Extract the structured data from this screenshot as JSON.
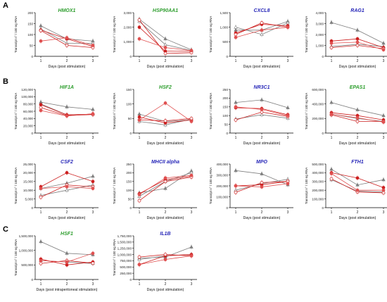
{
  "panel_letters": [
    "A",
    "B",
    "C"
  ],
  "colors": {
    "green_title": "#2e9e2e",
    "blue_title": "#2626b8",
    "gray": "#7f7f7f",
    "red": "#cc1f1f",
    "red_light": "#e05050"
  },
  "chart_data": [
    {
      "type": "line",
      "title": "HMOX1",
      "title_color": "green",
      "xlabel": "Days (post stimulation)",
      "ylabel": "Transcript n° / 100 ng RNA",
      "x": [
        1,
        2,
        3
      ],
      "ylim": [
        0,
        200
      ],
      "yticks": [
        0,
        50,
        100,
        150,
        200
      ],
      "yticklabels": [
        "0",
        "50",
        "100",
        "150",
        "200"
      ],
      "series": [
        {
          "values": [
            140,
            80,
            70
          ],
          "color": "gray",
          "marker": "triangle-filled"
        },
        {
          "values": [
            125,
            60,
            60
          ],
          "color": "gray",
          "marker": "triangle-open"
        },
        {
          "values": [
            120,
            80,
            45
          ],
          "color": "red",
          "marker": "circle-filled"
        },
        {
          "values": [
            118,
            50,
            40
          ],
          "color": "red",
          "marker": "circle-open"
        },
        {
          "values": [
            70,
            85,
            50
          ],
          "color": "red_light",
          "marker": "circle-filled"
        }
      ]
    },
    {
      "type": "line",
      "title": "HSP90AA1",
      "title_color": "green",
      "xlabel": "Days (post stimulation)",
      "ylabel": "Transcript n° / 100 ng RNA",
      "x": [
        1,
        2,
        3
      ],
      "ylim": [
        0,
        3000
      ],
      "yticks": [
        0,
        1000,
        2000,
        3000
      ],
      "yticklabels": [
        "0",
        "1,000",
        "2,000",
        "3,000"
      ],
      "series": [
        {
          "values": [
            2550,
            1200,
            450
          ],
          "color": "gray",
          "marker": "triangle-filled"
        },
        {
          "values": [
            2400,
            800,
            400
          ],
          "color": "gray",
          "marker": "triangle-open"
        },
        {
          "values": [
            2000,
            350,
            350
          ],
          "color": "red",
          "marker": "circle-filled"
        },
        {
          "values": [
            2500,
            200,
            250
          ],
          "color": "red",
          "marker": "circle-open"
        },
        {
          "values": [
            1200,
            600,
            400
          ],
          "color": "red_light",
          "marker": "circle-filled"
        }
      ]
    },
    {
      "type": "line",
      "title": "CXCL8",
      "title_color": "blue",
      "xlabel": "Days (post stimulation)",
      "ylabel": "Transcript n° / 100 ng RNA",
      "x": [
        1,
        2,
        3
      ],
      "ylim": [
        0,
        1500
      ],
      "yticks": [
        0,
        500,
        1000,
        1500
      ],
      "yticklabels": [
        "0",
        "500",
        "1,000",
        "1,500"
      ],
      "series": [
        {
          "values": [
            900,
            900,
            1200
          ],
          "color": "gray",
          "marker": "triangle-filled"
        },
        {
          "values": [
            1000,
            750,
            1150
          ],
          "color": "gray",
          "marker": "triangle-open"
        },
        {
          "values": [
            800,
            1100,
            1050
          ],
          "color": "red",
          "marker": "circle-filled"
        },
        {
          "values": [
            750,
            1150,
            1000
          ],
          "color": "red",
          "marker": "circle-open"
        },
        {
          "values": [
            650,
            900,
            1000
          ],
          "color": "red_light",
          "marker": "circle-filled"
        }
      ]
    },
    {
      "type": "line",
      "title": "RAG1",
      "title_color": "blue",
      "xlabel": "Days (post stimulation)",
      "ylabel": "Transcript n° / 100 ng RNA",
      "x": [
        1,
        2,
        3
      ],
      "ylim": [
        0,
        4000
      ],
      "yticks": [
        0,
        1000,
        2000,
        3000,
        4000
      ],
      "yticklabels": [
        "0",
        "1,000",
        "2,000",
        "3,000",
        "4,000"
      ],
      "series": [
        {
          "values": [
            3100,
            2400,
            1200
          ],
          "color": "gray",
          "marker": "triangle-filled"
        },
        {
          "values": [
            900,
            1100,
            900
          ],
          "color": "gray",
          "marker": "triangle-open"
        },
        {
          "values": [
            1400,
            1600,
            800
          ],
          "color": "red",
          "marker": "circle-filled"
        },
        {
          "values": [
            800,
            1000,
            700
          ],
          "color": "red",
          "marker": "circle-open"
        },
        {
          "values": [
            1200,
            1300,
            600
          ],
          "color": "red_light",
          "marker": "circle-filled"
        }
      ]
    },
    {
      "type": "line",
      "title": "HIF1A",
      "title_color": "green",
      "xlabel": "Days (post stimulation)",
      "ylabel": "Transcript n° / 100 ng RNA",
      "x": [
        1,
        2,
        3
      ],
      "ylim": [
        0,
        120000
      ],
      "yticks": [
        0,
        20000,
        40000,
        60000,
        80000,
        100000,
        120000
      ],
      "yticklabels": [
        "0",
        "20,000",
        "40,000",
        "60,000",
        "80,000",
        "100,000",
        "120,000"
      ],
      "series": [
        {
          "values": [
            85000,
            72000,
            65000
          ],
          "color": "gray",
          "marker": "triangle-filled"
        },
        {
          "values": [
            80000,
            50000,
            52000
          ],
          "color": "gray",
          "marker": "triangle-open"
        },
        {
          "values": [
            78000,
            50000,
            52000
          ],
          "color": "red",
          "marker": "circle-filled"
        },
        {
          "values": [
            70000,
            48000,
            51000
          ],
          "color": "red",
          "marker": "circle-open"
        },
        {
          "values": [
            62000,
            47000,
            53000
          ],
          "color": "red_light",
          "marker": "circle-filled"
        }
      ]
    },
    {
      "type": "line",
      "title": "HSF2",
      "title_color": "green",
      "xlabel": "Days (post stimulation)",
      "ylabel": "Transcript n° / 100 ng RNA",
      "x": [
        1,
        2,
        3
      ],
      "ylim": [
        0,
        150
      ],
      "yticks": [
        0,
        50,
        100,
        150
      ],
      "yticklabels": [
        "0",
        "50",
        "100",
        "150"
      ],
      "series": [
        {
          "values": [
            65,
            40,
            45
          ],
          "color": "gray",
          "marker": "triangle-filled"
        },
        {
          "values": [
            40,
            28,
            48
          ],
          "color": "gray",
          "marker": "triangle-open"
        },
        {
          "values": [
            55,
            35,
            45
          ],
          "color": "red",
          "marker": "circle-filled"
        },
        {
          "values": [
            45,
            42,
            50
          ],
          "color": "red",
          "marker": "circle-open"
        },
        {
          "values": [
            45,
            103,
            40
          ],
          "color": "red_light",
          "marker": "circle-filled"
        }
      ]
    },
    {
      "type": "line",
      "title": "NR3C1",
      "title_color": "blue",
      "xlabel": "Days (post stimulation)",
      "ylabel": "Transcript n° / 100 ng RNA",
      "x": [
        1,
        2,
        3
      ],
      "ylim": [
        0,
        250
      ],
      "yticks": [
        0,
        50,
        100,
        150,
        200,
        250
      ],
      "yticklabels": [
        "0",
        "50",
        "100",
        "150",
        "200",
        "250"
      ],
      "series": [
        {
          "values": [
            175,
            190,
            145
          ],
          "color": "gray",
          "marker": "triangle-filled"
        },
        {
          "values": [
            80,
            105,
            85
          ],
          "color": "gray",
          "marker": "triangle-open"
        },
        {
          "values": [
            145,
            140,
            105
          ],
          "color": "red",
          "marker": "circle-filled"
        },
        {
          "values": [
            75,
            120,
            95
          ],
          "color": "red",
          "marker": "circle-open"
        },
        {
          "values": [
            150,
            135,
            100
          ],
          "color": "red_light",
          "marker": "circle-filled"
        }
      ]
    },
    {
      "type": "line",
      "title": "EPAS1",
      "title_color": "green",
      "xlabel": "Days (post stimulation)",
      "ylabel": "Transcript n° / 100 ng RNA",
      "x": [
        1,
        2,
        3
      ],
      "ylim": [
        0,
        600000
      ],
      "yticks": [
        0,
        200000,
        400000,
        600000
      ],
      "yticklabels": [
        "0",
        "200,000",
        "400,000",
        "600,000"
      ],
      "series": [
        {
          "values": [
            420000,
            320000,
            240000
          ],
          "color": "gray",
          "marker": "triangle-filled"
        },
        {
          "values": [
            260000,
            200000,
            160000
          ],
          "color": "gray",
          "marker": "triangle-open"
        },
        {
          "values": [
            280000,
            240000,
            180000
          ],
          "color": "red",
          "marker": "circle-filled"
        },
        {
          "values": [
            250000,
            160000,
            160000
          ],
          "color": "red",
          "marker": "circle-open"
        },
        {
          "values": [
            260000,
            210000,
            150000
          ],
          "color": "red_light",
          "marker": "circle-filled"
        }
      ]
    },
    {
      "type": "line",
      "title": "CSF2",
      "title_color": "blue",
      "xlabel": "Days (post stimulation)",
      "ylabel": "Transcript n° / 100 ng RNA",
      "x": [
        1,
        2,
        3
      ],
      "ylim": [
        0,
        25000
      ],
      "yticks": [
        0,
        5000,
        10000,
        15000,
        20000,
        25000
      ],
      "yticklabels": [
        "0",
        "5,000",
        "10,000",
        "15,000",
        "20,000",
        "25,000"
      ],
      "series": [
        {
          "values": [
            11000,
            14000,
            18000
          ],
          "color": "gray",
          "marker": "triangle-filled"
        },
        {
          "values": [
            7000,
            10000,
            13000
          ],
          "color": "gray",
          "marker": "triangle-open"
        },
        {
          "values": [
            12000,
            20000,
            15000
          ],
          "color": "red",
          "marker": "circle-filled"
        },
        {
          "values": [
            6000,
            13000,
            12000
          ],
          "color": "red",
          "marker": "circle-open"
        },
        {
          "values": [
            11000,
            12000,
            11000
          ],
          "color": "red_light",
          "marker": "circle-filled"
        }
      ]
    },
    {
      "type": "line",
      "title": "MHCII alpha",
      "title_color": "blue",
      "xlabel": "Days (post stimulation)",
      "ylabel": "Transcript n° / 100 ng RNA",
      "x": [
        1,
        2,
        3
      ],
      "ylim": [
        0,
        250
      ],
      "yticks": [
        0,
        50,
        100,
        150,
        200,
        250
      ],
      "yticklabels": [
        "0",
        "50",
        "100",
        "150",
        "200",
        "250"
      ],
      "series": [
        {
          "values": [
            85,
            110,
            210
          ],
          "color": "gray",
          "marker": "triangle-filled"
        },
        {
          "values": [
            65,
            150,
            200
          ],
          "color": "gray",
          "marker": "triangle-open"
        },
        {
          "values": [
            80,
            160,
            180
          ],
          "color": "red",
          "marker": "circle-filled"
        },
        {
          "values": [
            40,
            150,
            175
          ],
          "color": "red",
          "marker": "circle-open"
        },
        {
          "values": [
            75,
            170,
            185
          ],
          "color": "red_light",
          "marker": "circle-filled"
        }
      ]
    },
    {
      "type": "line",
      "title": "MPO",
      "title_color": "blue",
      "xlabel": "Days (post stimulation)",
      "ylabel": "Transcript n° / 100 ng RNA",
      "x": [
        1,
        2,
        3
      ],
      "ylim": [
        0,
        400000
      ],
      "yticks": [
        0,
        100000,
        200000,
        300000,
        400000
      ],
      "yticklabels": [
        "0",
        "100,000",
        "200,000",
        "300,000",
        "400,000"
      ],
      "series": [
        {
          "values": [
            340000,
            310000,
            210000
          ],
          "color": "gray",
          "marker": "triangle-filled"
        },
        {
          "values": [
            160000,
            220000,
            260000
          ],
          "color": "gray",
          "marker": "triangle-open"
        },
        {
          "values": [
            200000,
            210000,
            240000
          ],
          "color": "red",
          "marker": "circle-filled"
        },
        {
          "values": [
            140000,
            230000,
            240000
          ],
          "color": "red",
          "marker": "circle-open"
        },
        {
          "values": [
            200000,
            190000,
            220000
          ],
          "color": "red_light",
          "marker": "circle-filled"
        }
      ]
    },
    {
      "type": "line",
      "title": "FTH1",
      "title_color": "blue",
      "xlabel": "Days (post stimulation)",
      "ylabel": "Transcript n° / 100 ng RNA",
      "x": [
        1,
        2,
        3
      ],
      "ylim": [
        0,
        500000
      ],
      "yticks": [
        0,
        100000,
        200000,
        300000,
        400000,
        500000
      ],
      "yticklabels": [
        "0",
        "100,000",
        "200,000",
        "300,000",
        "400,000",
        "500,000"
      ],
      "series": [
        {
          "values": [
            440000,
            260000,
            320000
          ],
          "color": "gray",
          "marker": "triangle-filled"
        },
        {
          "values": [
            320000,
            190000,
            180000
          ],
          "color": "gray",
          "marker": "triangle-open"
        },
        {
          "values": [
            400000,
            340000,
            230000
          ],
          "color": "red",
          "marker": "circle-filled"
        },
        {
          "values": [
            330000,
            180000,
            170000
          ],
          "color": "red",
          "marker": "circle-open"
        },
        {
          "values": [
            390000,
            200000,
            200000
          ],
          "color": "red_light",
          "marker": "circle-filled"
        }
      ]
    },
    {
      "type": "line",
      "title": "HSF1",
      "title_color": "green",
      "xlabel": "Days (post intraperitoneal stimulation)",
      "ylabel": "Transcript n° / 100 ng RNA",
      "x": [
        1,
        2,
        3
      ],
      "ylim": [
        0,
        1500000
      ],
      "yticks": [
        0,
        500000,
        1000000,
        1500000
      ],
      "yticklabels": [
        "0",
        "500,000",
        "1,000,000",
        "1,500,000"
      ],
      "series": [
        {
          "values": [
            1300000,
            900000,
            850000
          ],
          "color": "gray",
          "marker": "triangle-filled"
        },
        {
          "values": [
            650000,
            600000,
            550000
          ],
          "color": "gray",
          "marker": "triangle-open"
        },
        {
          "values": [
            700000,
            500000,
            600000
          ],
          "color": "red",
          "marker": "circle-filled"
        },
        {
          "values": [
            550000,
            650000,
            560000
          ],
          "color": "red",
          "marker": "circle-open"
        },
        {
          "values": [
            650000,
            600000,
            900000
          ],
          "color": "red_light",
          "marker": "circle-filled"
        }
      ]
    },
    {
      "type": "line",
      "title": "IL1B",
      "title_color": "blue",
      "xlabel": "Days (post stimulation)",
      "ylabel": "Transcript n° / 100 ng RNA",
      "x": [
        1,
        2,
        3
      ],
      "ylim": [
        0,
        1750000
      ],
      "yticks": [
        0,
        250000,
        500000,
        750000,
        1000000,
        1250000,
        1500000,
        1750000
      ],
      "yticklabels": [
        "0",
        "250,000",
        "500,000",
        "750,000",
        "1,000,000",
        "1,250,000",
        "1,500,000",
        "1,750,000"
      ],
      "series": [
        {
          "values": [
            850000,
            900000,
            1300000
          ],
          "color": "gray",
          "marker": "triangle-filled"
        },
        {
          "values": [
            800000,
            950000,
            1000000
          ],
          "color": "gray",
          "marker": "triangle-open"
        },
        {
          "values": [
            600000,
            950000,
            1000000
          ],
          "color": "red",
          "marker": "circle-filled"
        },
        {
          "values": [
            900000,
            1000000,
            950000
          ],
          "color": "red",
          "marker": "circle-open"
        },
        {
          "values": [
            600000,
            800000,
            950000
          ],
          "color": "red_light",
          "marker": "circle-filled"
        }
      ]
    }
  ]
}
